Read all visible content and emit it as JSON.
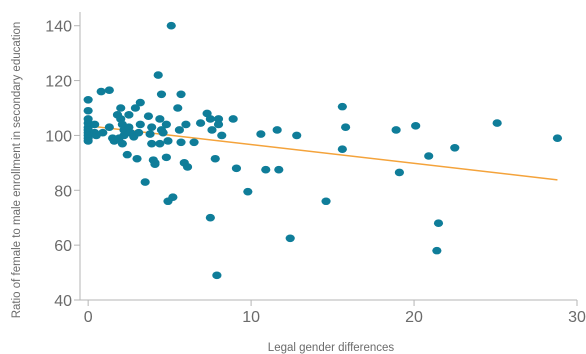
{
  "chart_data": {
    "type": "scatter",
    "title": "",
    "xlabel": "Legal gender differences",
    "ylabel": "Ratio of female to male enrollment in secondary education",
    "xlim": [
      -0.5,
      30
    ],
    "ylim": [
      40,
      145
    ],
    "x_ticks": [
      0,
      10,
      20,
      30
    ],
    "y_ticks": [
      40,
      60,
      80,
      100,
      120,
      140
    ],
    "grid": false,
    "legend": "none",
    "colors": {
      "points": "#0f7d99",
      "trend": "#f4a33b",
      "axis": "#b5b5b5",
      "text": "#6b6b6b"
    },
    "trend_line": {
      "x": [
        0,
        28.8
      ],
      "y": [
        103.5,
        83.8
      ]
    },
    "points": [
      [
        0,
        113
      ],
      [
        0,
        109
      ],
      [
        0,
        106
      ],
      [
        0,
        104.5
      ],
      [
        0,
        103
      ],
      [
        0,
        102
      ],
      [
        0,
        101
      ],
      [
        0,
        100
      ],
      [
        0,
        99
      ],
      [
        0,
        98
      ],
      [
        0.4,
        104
      ],
      [
        0.4,
        101
      ],
      [
        0.5,
        100
      ],
      [
        0.8,
        116
      ],
      [
        1.3,
        116.5
      ],
      [
        0.9,
        101
      ],
      [
        1.3,
        103
      ],
      [
        1.5,
        99
      ],
      [
        1.6,
        98
      ],
      [
        2,
        110
      ],
      [
        1.8,
        107.5
      ],
      [
        2,
        106
      ],
      [
        2.1,
        104
      ],
      [
        2.2,
        102
      ],
      [
        2.2,
        100
      ],
      [
        1.9,
        99
      ],
      [
        2.1,
        97
      ],
      [
        2.4,
        93
      ],
      [
        2.5,
        107.5
      ],
      [
        2.5,
        103
      ],
      [
        2.6,
        101
      ],
      [
        2.8,
        99.5
      ],
      [
        2.9,
        110
      ],
      [
        3.2,
        112
      ],
      [
        3.2,
        104
      ],
      [
        3,
        91.5
      ],
      [
        3.1,
        101
      ],
      [
        3.5,
        83
      ],
      [
        3.7,
        107
      ],
      [
        3.9,
        103
      ],
      [
        3.8,
        100.5
      ],
      [
        3.9,
        97
      ],
      [
        4,
        91
      ],
      [
        4.1,
        89.5
      ],
      [
        4.1,
        90
      ],
      [
        4.3,
        122
      ],
      [
        4.5,
        115
      ],
      [
        4.4,
        106
      ],
      [
        4.5,
        102
      ],
      [
        4.6,
        101
      ],
      [
        4.4,
        97
      ],
      [
        4.8,
        104
      ],
      [
        4.9,
        98
      ],
      [
        4.8,
        92
      ],
      [
        4.9,
        76
      ],
      [
        5.2,
        77.5
      ],
      [
        5.1,
        140
      ],
      [
        5.5,
        110
      ],
      [
        5.6,
        102
      ],
      [
        5.7,
        115
      ],
      [
        5.7,
        97.5
      ],
      [
        5.9,
        90
      ],
      [
        6,
        104
      ],
      [
        6.1,
        88.5
      ],
      [
        6.5,
        97.5
      ],
      [
        6.9,
        104.5
      ],
      [
        7.3,
        108
      ],
      [
        7.5,
        106
      ],
      [
        7.6,
        102
      ],
      [
        7.5,
        70
      ],
      [
        7.8,
        91.5
      ],
      [
        7.9,
        49
      ],
      [
        8,
        106
      ],
      [
        8,
        104
      ],
      [
        8.2,
        100
      ],
      [
        8.9,
        106
      ],
      [
        9.1,
        88
      ],
      [
        9.8,
        79.5
      ],
      [
        10.6,
        100.5
      ],
      [
        10.9,
        87.5
      ],
      [
        11.6,
        102
      ],
      [
        11.7,
        87.5
      ],
      [
        12.4,
        62.5
      ],
      [
        12.8,
        100
      ],
      [
        14.6,
        76
      ],
      [
        15.6,
        110.5
      ],
      [
        15.8,
        103
      ],
      [
        15.6,
        95
      ],
      [
        18.9,
        102
      ],
      [
        19.1,
        86.5
      ],
      [
        20.1,
        103.5
      ],
      [
        20.9,
        92.5
      ],
      [
        21.5,
        68
      ],
      [
        21.4,
        58
      ],
      [
        22.5,
        95.5
      ],
      [
        25.1,
        104.5
      ],
      [
        28.8,
        99
      ]
    ]
  }
}
